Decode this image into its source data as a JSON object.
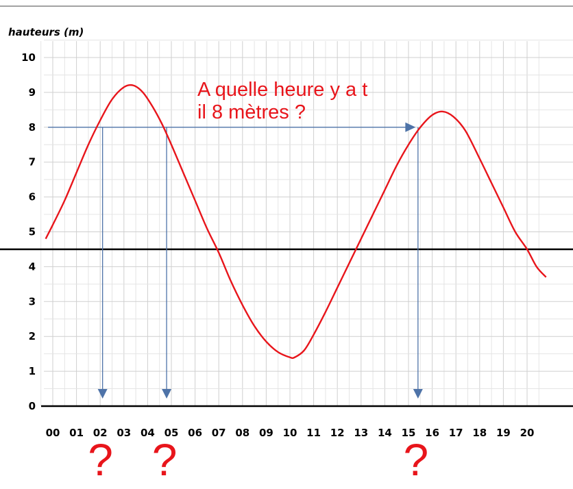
{
  "chart_data": {
    "type": "line",
    "ylabel": "hauteurs (m)",
    "xlabel": "",
    "x_ticks": [
      "00",
      "01",
      "02",
      "03",
      "04",
      "05",
      "06",
      "07",
      "08",
      "09",
      "10",
      "11",
      "12",
      "13",
      "14",
      "15",
      "16",
      "17",
      "18",
      "19",
      "20"
    ],
    "y_ticks": [
      "0",
      "1",
      "2",
      "3",
      "4",
      "5",
      "6",
      "7",
      "8",
      "9",
      "10"
    ],
    "xlim": [
      -0.5,
      20.8
    ],
    "ylim": [
      0,
      10.6
    ],
    "grid": true,
    "series": [
      {
        "color": "#e8151b",
        "x": [
          -0.3,
          0,
          0.5,
          1,
          1.5,
          2,
          2.5,
          3,
          3.4,
          3.8,
          4.2,
          4.6,
          5,
          5.5,
          6,
          6.5,
          7,
          7.5,
          8,
          8.5,
          9,
          9.5,
          10,
          10.2,
          10.6,
          11,
          11.5,
          12,
          12.5,
          13,
          13.5,
          14,
          14.5,
          15,
          15.5,
          16,
          16.45,
          16.9,
          17.4,
          18,
          18.5,
          19,
          19.5,
          20,
          20.4,
          20.8
        ],
        "y": [
          4.8,
          5.2,
          5.9,
          6.7,
          7.5,
          8.2,
          8.8,
          9.15,
          9.2,
          9.0,
          8.6,
          8.1,
          7.5,
          6.7,
          5.9,
          5.1,
          4.4,
          3.6,
          2.9,
          2.3,
          1.85,
          1.55,
          1.4,
          1.4,
          1.6,
          2.05,
          2.7,
          3.4,
          4.1,
          4.8,
          5.5,
          6.2,
          6.9,
          7.5,
          8.0,
          8.35,
          8.45,
          8.3,
          7.9,
          7.1,
          6.4,
          5.7,
          5.0,
          4.5,
          4.0,
          3.7
        ]
      }
    ],
    "reference_lines": [
      {
        "y": 0,
        "color": "#000000"
      },
      {
        "y": 4.5,
        "color": "#000000"
      }
    ],
    "annotation": {
      "lines": [
        "A quelle heure y a t",
        "il 8 mètres ?"
      ],
      "color": "#e8151b"
    },
    "question_arrows": {
      "level": 8,
      "color": "#4e73a8",
      "horizontal_from_x": -0.2,
      "horizontal_to_x": 15.3,
      "drops_x": [
        2.1,
        4.8,
        15.4
      ],
      "question_marks": [
        "?",
        "?",
        "?"
      ]
    }
  }
}
